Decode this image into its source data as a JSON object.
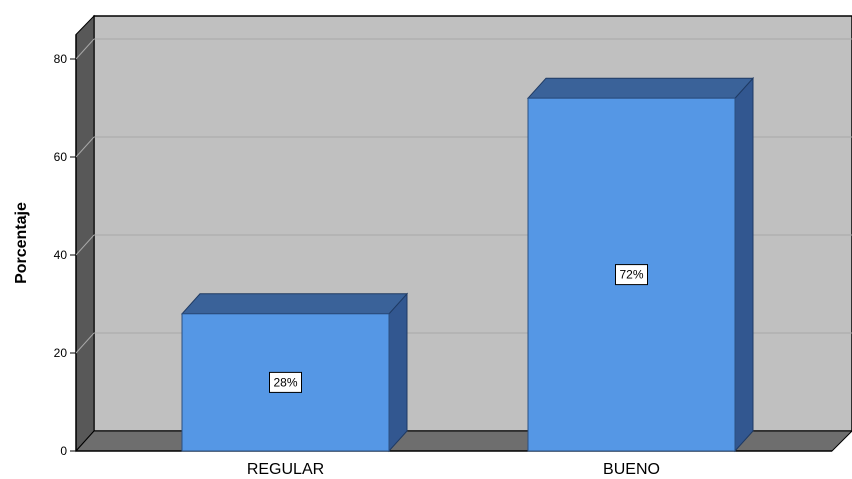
{
  "chart_data": {
    "type": "bar",
    "categories": [
      "REGULAR",
      "BUENO"
    ],
    "values": [
      28,
      72
    ],
    "data_labels": [
      "28%",
      "72%"
    ],
    "title": "",
    "xlabel": "",
    "ylabel": "Porcentaje",
    "ylim": [
      0,
      85
    ],
    "yticks": [
      0,
      20,
      40,
      60,
      80
    ],
    "grid": true,
    "style": "3d",
    "colors": {
      "bar_front": "#5597e5",
      "bar_top": "#3a6299",
      "bar_side": "#325790",
      "plot_bg": "#c0c0c0",
      "floor": "#6e6e6e",
      "wall_left": "#585858"
    }
  }
}
